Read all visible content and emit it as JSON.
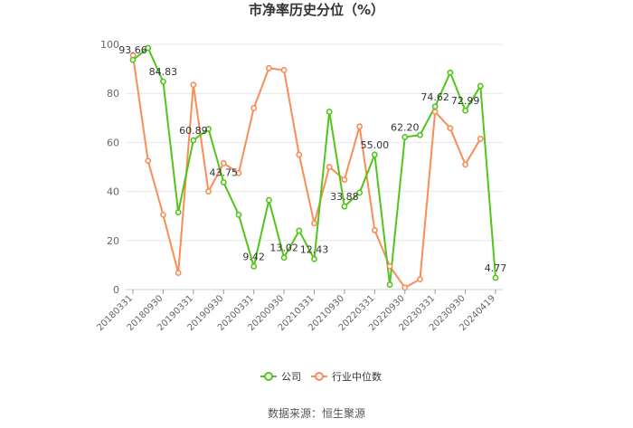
{
  "chart_data": {
    "type": "line",
    "title": "市净率历史分位（%）",
    "ylim": [
      0,
      100
    ],
    "yticks": [
      0,
      20,
      40,
      60,
      80,
      100
    ],
    "grid": true,
    "x_tick_labels": [
      "20180331",
      "20180930",
      "20190331",
      "20190930",
      "20200331",
      "20200930",
      "20210331",
      "20210930",
      "20220331",
      "20220930",
      "20230331",
      "20230930",
      "20240419"
    ],
    "series": [
      {
        "name": "公司",
        "color": "#52c41a",
        "values": [
          93.66,
          98.5,
          84.83,
          31.5,
          60.89,
          65.5,
          43.75,
          30.5,
          9.42,
          36.5,
          13.02,
          24,
          12.43,
          72.5,
          33.88,
          39.5,
          55.0,
          2,
          62.2,
          63,
          74.62,
          88.5,
          72.99,
          83,
          4.77
        ]
      },
      {
        "name": "行业中位数",
        "color": "#fa8c57",
        "values": [
          95.5,
          52.5,
          30.5,
          6.8,
          83.5,
          40,
          51.5,
          47.5,
          74,
          90.3,
          89.5,
          55,
          27,
          50,
          44.8,
          66.5,
          24.2,
          9.5,
          0.8,
          4.2,
          72.5,
          65.8,
          51,
          61.5,
          null
        ]
      }
    ],
    "data_labels": [
      {
        "index": 0,
        "text": "93.66"
      },
      {
        "index": 2,
        "text": "84.83"
      },
      {
        "index": 4,
        "text": "60.89"
      },
      {
        "index": 6,
        "text": "43.75"
      },
      {
        "index": 8,
        "text": "9.42"
      },
      {
        "index": 10,
        "text": "13.02"
      },
      {
        "index": 12,
        "text": "12.43"
      },
      {
        "index": 14,
        "text": "33.88"
      },
      {
        "index": 16,
        "text": "55.00"
      },
      {
        "index": 18,
        "text": "62.20"
      },
      {
        "index": 20,
        "text": "74.62"
      },
      {
        "index": 22,
        "text": "72.99"
      },
      {
        "index": 24,
        "text": "4.77"
      }
    ],
    "legend": {
      "position": "bottom-center",
      "items": [
        "公司",
        "行业中位数"
      ]
    },
    "source": "数据来源：恒生聚源"
  }
}
